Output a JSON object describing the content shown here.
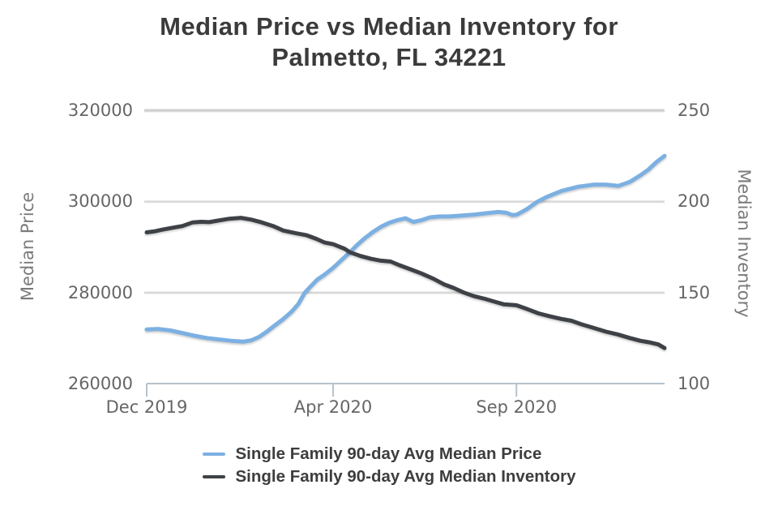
{
  "title": "Median Price vs Median Inventory for Palmetto, FL 34221",
  "colors": {
    "price_line": "#7CB0E2",
    "inventory_line": "#3E4247",
    "grid_line": "#d6d6d6",
    "top_grid_line": "#d0d0d0",
    "x_axis_line": "#b5c2cc",
    "tick_text": "#666666",
    "axis_title_text": "#7a7a7a",
    "title_text": "#3b3b3b",
    "legend_text": "#3d3d3d",
    "background": "#ffffff"
  },
  "chart_data": {
    "type": "line",
    "title": "Median Price vs Median Inventory for Palmetto, FL 34221",
    "grid": "horizontal",
    "legend_position": "bottom",
    "x_ticks": [
      {
        "label": "Dec 2019",
        "f": 0.0
      },
      {
        "label": "Apr 2020",
        "f": 0.36
      },
      {
        "label": "Sep 2020",
        "f": 0.714
      }
    ],
    "left_axis": {
      "label": "Median Price",
      "min": 260000,
      "max": 320000,
      "ticks": [
        260000,
        280000,
        300000,
        320000
      ]
    },
    "right_axis": {
      "label": "Median Inventory",
      "min": 100,
      "max": 250,
      "ticks": [
        100,
        150,
        200,
        250
      ]
    },
    "series": [
      {
        "name": "Single Family 90-day Avg Median Price",
        "axis": "left",
        "color": "#7CB0E2",
        "points": [
          [
            0.0,
            271900
          ],
          [
            0.022,
            272000
          ],
          [
            0.045,
            271700
          ],
          [
            0.069,
            271100
          ],
          [
            0.092,
            270500
          ],
          [
            0.116,
            270000
          ],
          [
            0.139,
            269700
          ],
          [
            0.163,
            269400
          ],
          [
            0.186,
            269200
          ],
          [
            0.202,
            269500
          ],
          [
            0.218,
            270300
          ],
          [
            0.233,
            271500
          ],
          [
            0.249,
            272900
          ],
          [
            0.264,
            274200
          ],
          [
            0.28,
            275800
          ],
          [
            0.293,
            277500
          ],
          [
            0.305,
            279900
          ],
          [
            0.318,
            281500
          ],
          [
            0.33,
            282900
          ],
          [
            0.343,
            283900
          ],
          [
            0.36,
            285400
          ],
          [
            0.374,
            286900
          ],
          [
            0.393,
            288900
          ],
          [
            0.406,
            290400
          ],
          [
            0.421,
            291900
          ],
          [
            0.437,
            293300
          ],
          [
            0.452,
            294400
          ],
          [
            0.468,
            295300
          ],
          [
            0.484,
            295900
          ],
          [
            0.5,
            296300
          ],
          [
            0.515,
            295500
          ],
          [
            0.531,
            295900
          ],
          [
            0.547,
            296500
          ],
          [
            0.566,
            296700
          ],
          [
            0.585,
            296700
          ],
          [
            0.609,
            296900
          ],
          [
            0.632,
            297100
          ],
          [
            0.656,
            297400
          ],
          [
            0.679,
            297700
          ],
          [
            0.695,
            297500
          ],
          [
            0.706,
            297000
          ],
          [
            0.715,
            297100
          ],
          [
            0.734,
            298300
          ],
          [
            0.754,
            299900
          ],
          [
            0.773,
            301000
          ],
          [
            0.801,
            302300
          ],
          [
            0.832,
            303200
          ],
          [
            0.851,
            303500
          ],
          [
            0.864,
            303700
          ],
          [
            0.887,
            303700
          ],
          [
            0.911,
            303400
          ],
          [
            0.933,
            304300
          ],
          [
            0.953,
            305700
          ],
          [
            0.969,
            307000
          ],
          [
            0.984,
            308600
          ],
          [
            1.0,
            310000
          ]
        ]
      },
      {
        "name": "Single Family 90-day Avg Median Inventory",
        "axis": "right",
        "color": "#3E4247",
        "points": [
          [
            0.0,
            183
          ],
          [
            0.014,
            183.5
          ],
          [
            0.03,
            184.5
          ],
          [
            0.049,
            185.5
          ],
          [
            0.069,
            186.5
          ],
          [
            0.089,
            188.5
          ],
          [
            0.105,
            188.8
          ],
          [
            0.121,
            188.6
          ],
          [
            0.139,
            189.5
          ],
          [
            0.16,
            190.5
          ],
          [
            0.182,
            191
          ],
          [
            0.202,
            190
          ],
          [
            0.222,
            188.5
          ],
          [
            0.244,
            186.5
          ],
          [
            0.264,
            184
          ],
          [
            0.288,
            182.5
          ],
          [
            0.308,
            181.5
          ],
          [
            0.327,
            179.5
          ],
          [
            0.343,
            177.5
          ],
          [
            0.36,
            176.5
          ],
          [
            0.382,
            174
          ],
          [
            0.393,
            172
          ],
          [
            0.413,
            170
          ],
          [
            0.433,
            168.5
          ],
          [
            0.452,
            167.5
          ],
          [
            0.471,
            167
          ],
          [
            0.488,
            165
          ],
          [
            0.507,
            163
          ],
          [
            0.53,
            160.5
          ],
          [
            0.554,
            157.5
          ],
          [
            0.574,
            154.5
          ],
          [
            0.593,
            152.5
          ],
          [
            0.612,
            150
          ],
          [
            0.632,
            148
          ],
          [
            0.653,
            146.5
          ],
          [
            0.671,
            145
          ],
          [
            0.69,
            143.5
          ],
          [
            0.714,
            143
          ],
          [
            0.734,
            141
          ],
          [
            0.757,
            138.5
          ],
          [
            0.778,
            137
          ],
          [
            0.8,
            135.5
          ],
          [
            0.82,
            134.5
          ],
          [
            0.84,
            132.5
          ],
          [
            0.864,
            130.5
          ],
          [
            0.887,
            128.5
          ],
          [
            0.909,
            127
          ],
          [
            0.933,
            125
          ],
          [
            0.953,
            123.5
          ],
          [
            0.973,
            122.5
          ],
          [
            0.988,
            121.5
          ],
          [
            1.0,
            119.5
          ]
        ]
      }
    ]
  }
}
